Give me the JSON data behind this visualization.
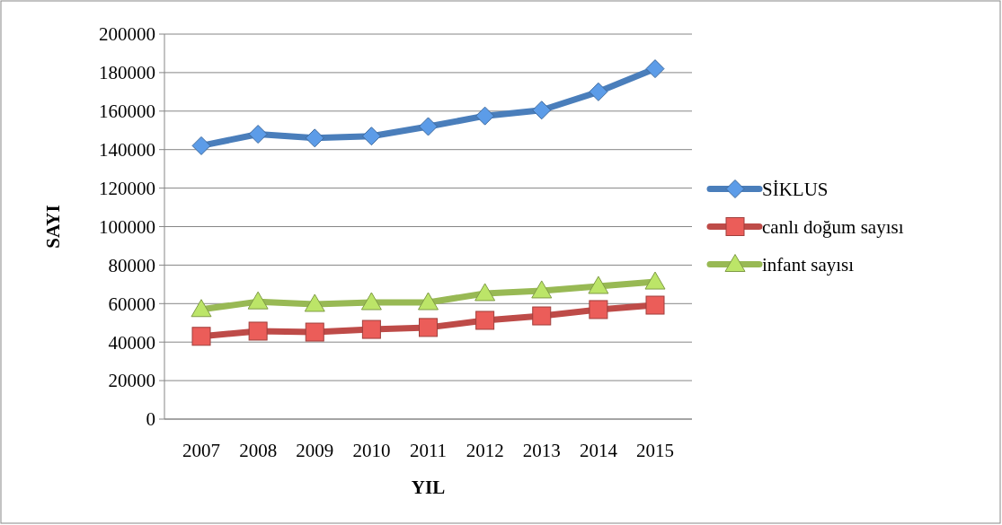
{
  "chart_data": {
    "type": "line",
    "xlabel": "YIL",
    "ylabel": "SAYI",
    "categories": [
      "2007",
      "2008",
      "2009",
      "2010",
      "2011",
      "2012",
      "2013",
      "2014",
      "2015"
    ],
    "series": [
      {
        "name": "SİKLUS",
        "color": "#4a7ebb",
        "marker": "diamond",
        "values": [
          142000,
          148000,
          146000,
          147000,
          152000,
          157500,
          160500,
          170000,
          182000
        ]
      },
      {
        "name": "canlı doğum sayısı",
        "color": "#be4b48",
        "marker": "square",
        "values": [
          43000,
          45700,
          45200,
          46600,
          47600,
          51300,
          53600,
          56900,
          59200
        ]
      },
      {
        "name": "infant sayısı",
        "color": "#98b954",
        "marker": "triangle",
        "values": [
          57000,
          61000,
          59700,
          60600,
          60600,
          65300,
          66700,
          69000,
          71300
        ]
      }
    ],
    "ylim": [
      0,
      200000
    ],
    "yticks": [
      0,
      20000,
      40000,
      60000,
      80000,
      100000,
      120000,
      140000,
      160000,
      180000,
      200000
    ],
    "grid": "y",
    "legend": "right"
  }
}
